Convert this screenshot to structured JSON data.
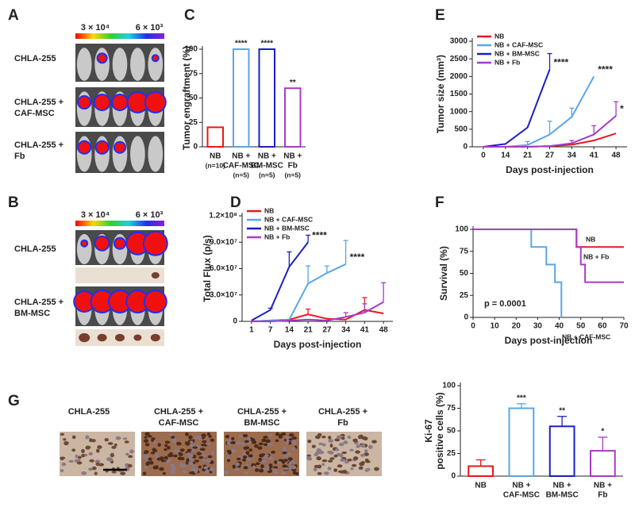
{
  "panel_labels": [
    "A",
    "B",
    "C",
    "D",
    "E",
    "F",
    "G"
  ],
  "panel_a": {
    "scale_high": "3 × 10⁴",
    "scale_low": "6 × 10³",
    "groups": [
      {
        "lines": [
          "CHLA-255"
        ],
        "color": "#e8262a"
      },
      {
        "lines": [
          "CHLA-255 +",
          "CAF-MSC"
        ],
        "color": "#2bb3e6"
      },
      {
        "lines": [
          "CHLA-255 +",
          "Fb"
        ],
        "color": "#a52ec4"
      }
    ]
  },
  "panel_b": {
    "scale_high": "3 × 10⁴",
    "scale_low": "6 × 10³",
    "groups": [
      {
        "lines": [
          "CHLA-255"
        ],
        "color": "#e8262a"
      },
      {
        "lines": [
          "CHLA-255 +",
          "BM-MSC"
        ],
        "color": "#2424b0"
      }
    ]
  },
  "panel_g": {
    "groups": [
      {
        "lines": [
          "CHLA-255"
        ],
        "color": "#e8262a"
      },
      {
        "lines": [
          "CHLA-255 +",
          "CAF-MSC"
        ],
        "color": "#2bb3e6"
      },
      {
        "lines": [
          "CHLA-255 +",
          "BM-MSC"
        ],
        "color": "#2424b0"
      },
      {
        "lines": [
          "CHLA-255 +",
          "Fb"
        ],
        "color": "#a52ec4"
      }
    ]
  },
  "chart_data": [
    {
      "type": "bar",
      "y_label": "Tumor  engraftment (%)",
      "categories": [
        [
          "NB"
        ],
        [
          "NB +",
          "CAF-MSC"
        ],
        [
          "NB +",
          "BM-MSC"
        ],
        [
          "NB +",
          "Fb"
        ]
      ],
      "sample_sizes": [
        "(n=10)",
        "(n=5)",
        "(n=5)",
        "(n=5)"
      ],
      "values": [
        20,
        100,
        100,
        60
      ],
      "colors": [
        "#e8191c",
        "#5aa6e6",
        "#1b1fc2",
        "#a83ac7"
      ],
      "significance": [
        null,
        "****",
        "****",
        "**"
      ],
      "ylim": [
        0,
        100
      ],
      "yticks": [
        0,
        25,
        50,
        75,
        100
      ]
    },
    {
      "type": "line",
      "y_label": "Total Flux (p/s)",
      "x_label": "Days post-injection",
      "categories": [
        1,
        7,
        14,
        21,
        27,
        34,
        41,
        48
      ],
      "ylim": [
        0,
        120000000
      ],
      "yticks": [
        0,
        {
          "value": 30000000,
          "label": "3.0×10⁷"
        },
        {
          "value": 60000000,
          "label": "6.0×10⁷"
        },
        {
          "value": 90000000,
          "label": "9.0×10⁷"
        },
        {
          "value": 120000000,
          "label": "1.2×10⁸"
        }
      ],
      "legend": "upper left",
      "series": [
        {
          "name": "NB",
          "color": "#e8191c",
          "values": [
            0,
            1000000,
            2000000,
            8000000,
            3000000,
            2000000,
            13000000,
            9000000
          ],
          "errors": [
            null,
            null,
            null,
            6000000,
            null,
            null,
            14000000,
            null
          ]
        },
        {
          "name": "NB + CAF-MSC",
          "color": "#5aa6e6",
          "values": [
            0,
            1000000,
            2000000,
            43000000,
            55000000,
            65000000,
            null,
            null
          ],
          "errors": [
            null,
            null,
            null,
            20000000,
            8000000,
            27000000,
            null,
            null
          ],
          "significance": "****"
        },
        {
          "name": "NB + BM-MSC",
          "color": "#1b1fc2",
          "values": [
            1000000,
            13000000,
            62000000,
            90000000,
            null,
            null,
            null,
            null
          ],
          "errors": [
            null,
            2000000,
            17000000,
            8000000,
            null,
            null,
            null,
            null
          ],
          "significance": "****"
        },
        {
          "name": "NB + Fb",
          "color": "#a83ac7",
          "values": [
            0,
            0,
            1000000,
            2000000,
            1000000,
            5000000,
            10000000,
            22000000
          ],
          "errors": [
            null,
            null,
            null,
            null,
            null,
            5000000,
            10000000,
            22000000
          ]
        }
      ]
    },
    {
      "type": "line",
      "y_label": "Tumor  size (mm³)",
      "x_label": "Days post-injection",
      "categories": [
        0,
        14,
        21,
        27,
        34,
        41,
        48
      ],
      "ylim": [
        0,
        3000
      ],
      "yticks": [
        0,
        500,
        1000,
        1500,
        2000,
        2500,
        3000
      ],
      "legend": "upper left",
      "series": [
        {
          "name": "NB",
          "color": "#e8191c",
          "values": [
            0,
            0,
            0,
            20,
            60,
            180,
            380
          ]
        },
        {
          "name": "NB + CAF-MSC",
          "color": "#5aa6e6",
          "values": [
            0,
            0,
            50,
            350,
            850,
            2000,
            null
          ],
          "errors": [
            null,
            null,
            100,
            380,
            250,
            null,
            null
          ],
          "significance": "****"
        },
        {
          "name": "NB + BM-MSC",
          "color": "#1b1fc2",
          "values": [
            0,
            80,
            550,
            2200,
            null,
            null,
            null
          ],
          "errors": [
            null,
            null,
            null,
            450,
            null,
            null,
            null
          ],
          "significance": "****"
        },
        {
          "name": "NB + Fb",
          "color": "#a83ac7",
          "values": [
            0,
            0,
            0,
            20,
            100,
            350,
            880
          ],
          "errors": [
            null,
            null,
            null,
            null,
            80,
            250,
            400
          ],
          "significance": "*"
        }
      ]
    },
    {
      "type": "step",
      "y_label": "Survival (%)",
      "x_label": "Days post-injection",
      "xlim": [
        0,
        70
      ],
      "xticks": [
        0,
        10,
        20,
        30,
        40,
        50,
        60,
        70
      ],
      "ylim": [
        0,
        100
      ],
      "yticks": [
        0,
        25,
        50,
        75,
        100
      ],
      "annotation": "p = 0.0001",
      "series": [
        {
          "name": "NB",
          "color": "#e8191c",
          "x": [
            0,
            48,
            70
          ],
          "values": [
            100,
            80,
            80
          ]
        },
        {
          "name": "NB + CAF-MSC",
          "color": "#5aa6e6",
          "x": [
            0,
            27,
            34,
            38,
            41
          ],
          "values": [
            100,
            80,
            60,
            40,
            0
          ]
        },
        {
          "name": "NB + Fb",
          "color": "#a83ac7",
          "x": [
            0,
            48,
            50,
            52,
            70
          ],
          "values": [
            100,
            80,
            60,
            40,
            40
          ]
        }
      ]
    },
    {
      "type": "bar",
      "y_label": [
        "Ki-67",
        "positive cells (%)"
      ],
      "categories": [
        [
          "NB"
        ],
        [
          "NB +",
          "CAF-MSC"
        ],
        [
          "NB +",
          "BM-MSC"
        ],
        [
          "NB +",
          "Fb"
        ]
      ],
      "values": [
        11,
        75,
        55,
        28
      ],
      "errors": [
        7,
        5,
        11,
        15
      ],
      "colors": [
        "#e8191c",
        "#5aa6e6",
        "#1b1fc2",
        "#a83ac7"
      ],
      "significance": [
        null,
        "***",
        "**",
        "*"
      ],
      "ylim": [
        0,
        100
      ],
      "yticks": [
        0,
        25,
        50,
        75,
        100
      ]
    }
  ]
}
